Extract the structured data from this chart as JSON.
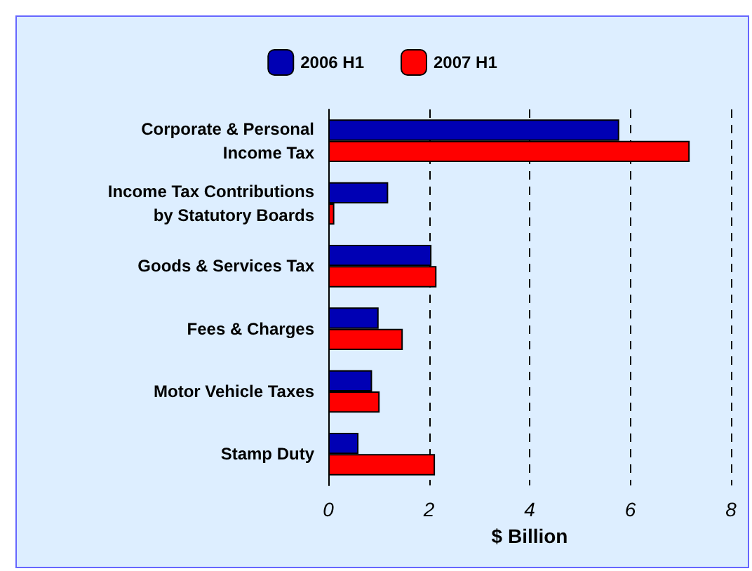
{
  "chart_data": {
    "type": "bar",
    "orientation": "horizontal",
    "xlabel": "$ Billion",
    "categories": [
      "Corporate & Personal\nIncome Tax",
      "Income Tax Contributions\nby Statutory Boards",
      "Goods & Services Tax",
      "Fees & Charges",
      "Motor Vehicle Taxes",
      "Stamp Duty"
    ],
    "series": [
      {
        "name": "2006 H1",
        "color": "#0000b4",
        "values": [
          5.78,
          1.19,
          2.05,
          1.0,
          0.87,
          0.6
        ]
      },
      {
        "name": "2007 H1",
        "color": "#ff0000",
        "values": [
          7.18,
          0.12,
          2.15,
          1.48,
          1.02,
          2.12
        ]
      }
    ],
    "xlim": [
      0,
      8
    ],
    "xticks": [
      0,
      2,
      4,
      6,
      8
    ],
    "grid": "x",
    "legend": "top"
  }
}
